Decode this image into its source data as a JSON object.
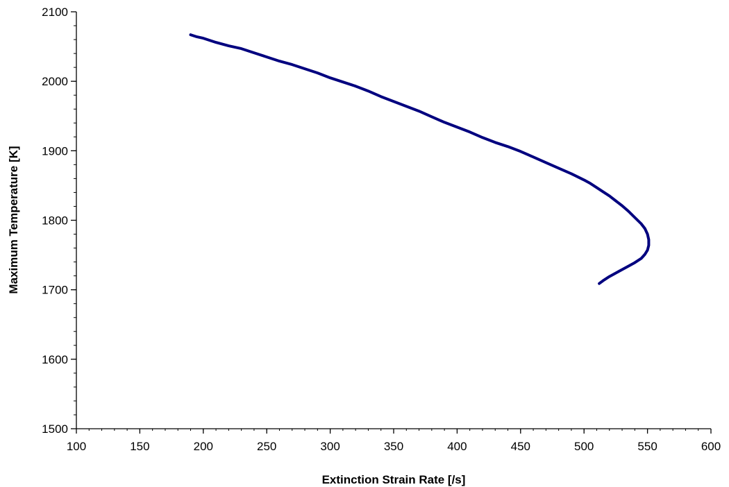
{
  "chart_data": {
    "type": "line",
    "title": "",
    "xlabel": "Extinction Strain Rate [/s]",
    "ylabel": "Maximum Temperature [K]",
    "xlim": [
      100,
      600
    ],
    "ylim": [
      1500,
      2100
    ],
    "x_ticks": [
      100,
      150,
      200,
      250,
      300,
      350,
      400,
      450,
      500,
      550,
      600
    ],
    "y_ticks": [
      1500,
      1600,
      1700,
      1800,
      1900,
      2000,
      2100
    ],
    "x_minor_step": 10,
    "y_minor_step": 20,
    "grid": false,
    "legend": "none",
    "series": [
      {
        "color": "#00007f",
        "x": [
          190,
          195,
          200,
          205,
          210,
          220,
          230,
          240,
          250,
          260,
          270,
          280,
          290,
          300,
          310,
          320,
          330,
          340,
          350,
          360,
          370,
          380,
          390,
          400,
          410,
          420,
          430,
          440,
          450,
          460,
          470,
          480,
          490,
          500,
          505,
          510,
          515,
          520,
          525,
          530,
          535,
          540,
          545,
          548,
          550,
          551,
          551,
          550,
          548,
          545,
          540,
          535,
          530,
          525,
          520,
          515,
          512
        ],
        "y": [
          2067,
          2064,
          2062,
          2059,
          2056,
          2051,
          2047,
          2041,
          2035,
          2029,
          2024,
          2018,
          2012,
          2005,
          1999,
          1993,
          1986,
          1978,
          1971,
          1964,
          1957,
          1949,
          1941,
          1934,
          1927,
          1919,
          1912,
          1906,
          1899,
          1891,
          1883,
          1875,
          1867,
          1858,
          1853,
          1847,
          1841,
          1835,
          1828,
          1821,
          1813,
          1804,
          1795,
          1788,
          1780,
          1772,
          1764,
          1757,
          1751,
          1745,
          1739,
          1734,
          1729,
          1724,
          1719,
          1713,
          1709
        ]
      }
    ]
  }
}
